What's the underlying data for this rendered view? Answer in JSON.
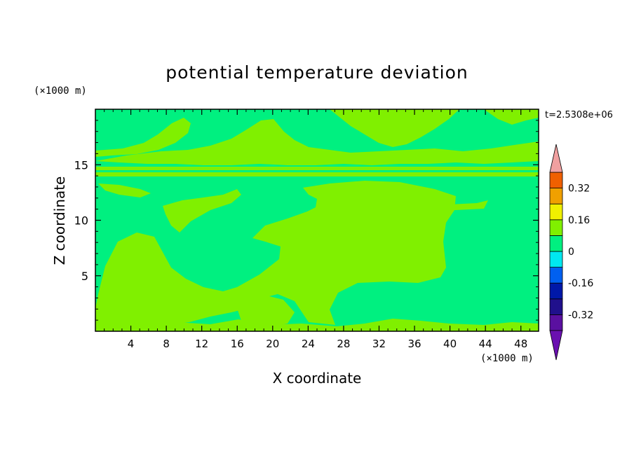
{
  "chart_data": {
    "type": "heatmap",
    "title": "potential temperature deviation",
    "xlabel": "X coordinate",
    "ylabel": "Z coordinate",
    "x_unit": "(×1000 m)",
    "y_unit": "(×1000 m)",
    "time_label": "t=2.5308e+06",
    "xlim": [
      0,
      50
    ],
    "ylim": [
      0,
      20
    ],
    "x_ticks": [
      4,
      8,
      12,
      16,
      20,
      24,
      28,
      32,
      36,
      40,
      44,
      48
    ],
    "y_ticks": [
      5,
      10,
      15
    ],
    "colorbar": {
      "levels": [
        -0.4,
        -0.32,
        -0.24,
        -0.16,
        -0.08,
        0,
        0.08,
        0.16,
        0.24,
        0.32,
        0.4
      ],
      "labels": [
        "0.32",
        "0.16",
        "0",
        "-0.16",
        "-0.32"
      ],
      "label_values": [
        0.32,
        0.16,
        0,
        -0.16,
        -0.32
      ],
      "colors": [
        "#5a10a0",
        "#20108c",
        "#0018a8",
        "#0060f0",
        "#00e8f0",
        "#00f080",
        "#80f000",
        "#f0f000",
        "#f0a000",
        "#f06000",
        "#f02020"
      ],
      "over_color": "#f0a0a0",
      "under_color": "#6a10b0"
    },
    "background_color": "#00f080",
    "region_color": "#80f000"
  }
}
